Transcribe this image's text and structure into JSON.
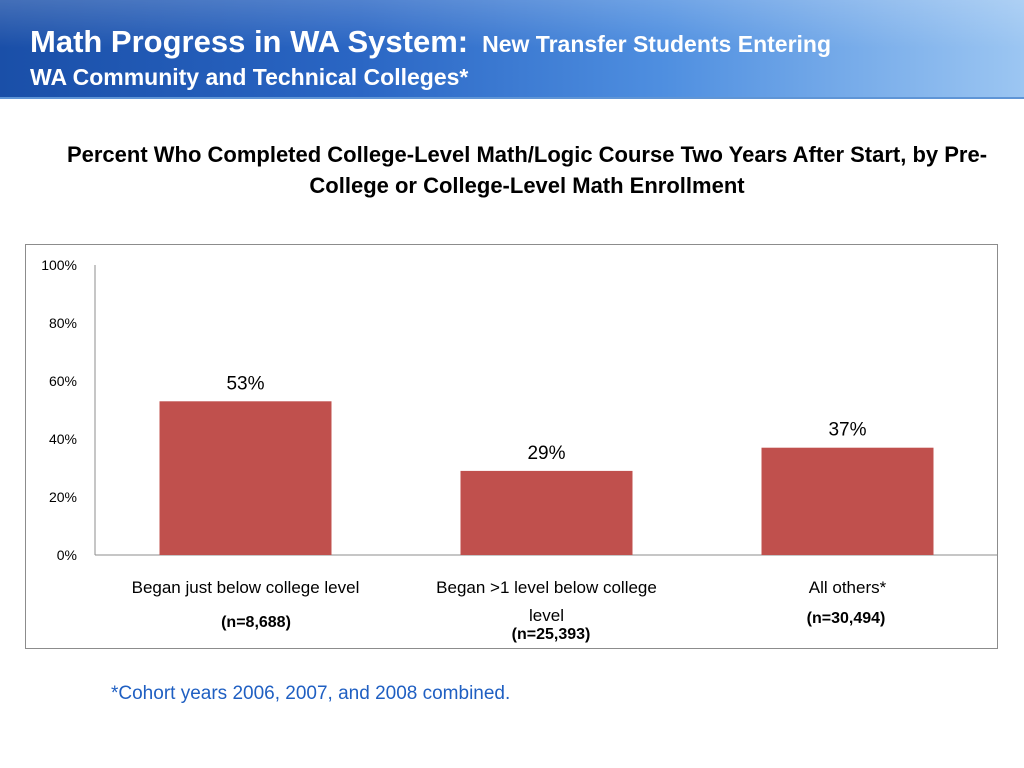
{
  "header": {
    "title_main": "Math Progress in WA System:",
    "title_sub": "New Transfer Students Entering",
    "title_line2": "WA Community and Technical Colleges*"
  },
  "chart_data": {
    "type": "bar",
    "title": "Percent Who Completed College-Level Math/Logic Course Two Years After Start, by Pre-College or College-Level Math Enrollment",
    "categories": [
      "Began just below college level",
      "Began >1 level below college level",
      "All others*"
    ],
    "category_lines": [
      [
        "Began just below college level"
      ],
      [
        "Began >1 level below college",
        "level"
      ],
      [
        "All others*"
      ]
    ],
    "category_n": [
      "(n=8,688)",
      "(n=25,393)",
      "(n=30,494)"
    ],
    "values": [
      53,
      29,
      37
    ],
    "data_labels": [
      "53%",
      "29%",
      "37%"
    ],
    "ylim": [
      0,
      100
    ],
    "yticks": [
      0,
      20,
      40,
      60,
      80,
      100
    ],
    "ytick_labels": [
      "0%",
      "20%",
      "40%",
      "60%",
      "80%",
      "100%"
    ],
    "bar_color": "#c0504d",
    "grid": false,
    "legend": "none",
    "xlabel": "",
    "ylabel": ""
  },
  "footnote": "*Cohort years 2006, 2007, and 2008 combined.",
  "colors": {
    "header_start": "#1a4fa8",
    "header_end": "#9cc6f2",
    "footnote": "#1f5fc2"
  }
}
